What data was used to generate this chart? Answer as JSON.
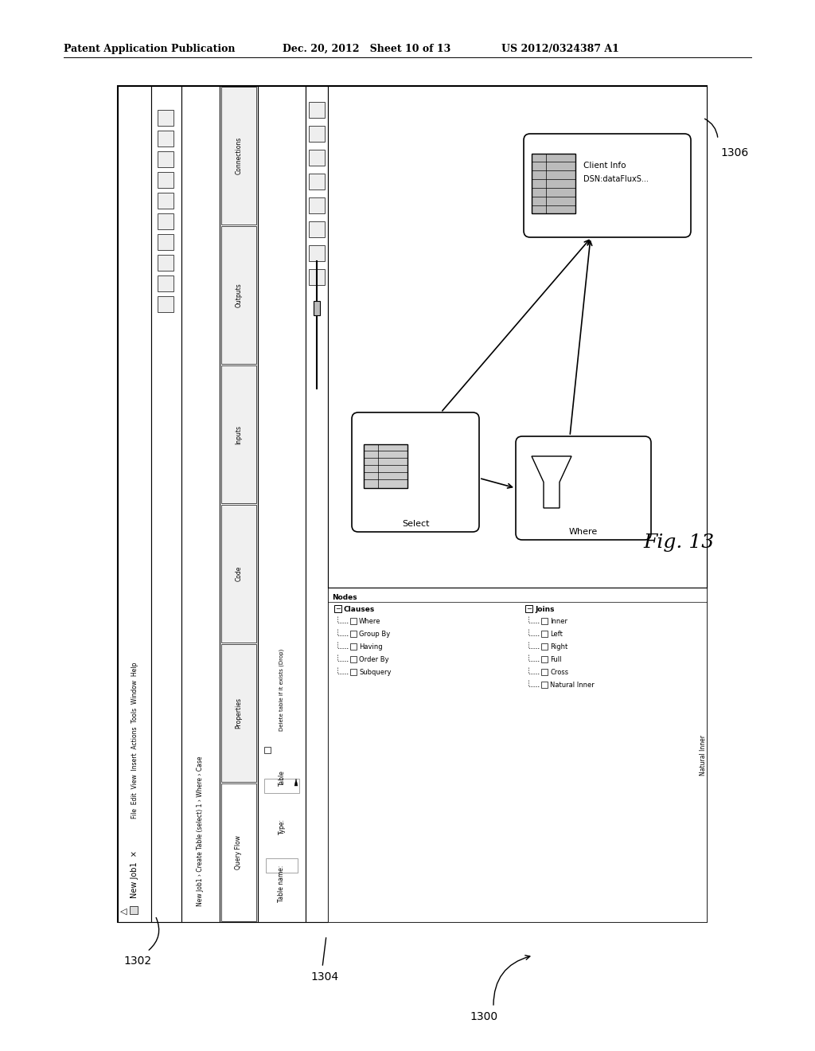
{
  "header_left": "Patent Application Publication",
  "header_mid": "Dec. 20, 2012   Sheet 10 of 13",
  "header_right": "US 2012/0324387 A1",
  "fig_label": "Fig. 13",
  "label_1300": "1300",
  "label_1302": "1302",
  "label_1304": "1304",
  "label_1306": "1306",
  "bg_color": "#ffffff",
  "clauses_items": [
    "Where",
    "Group By",
    "Having",
    "Order By",
    "Subquery"
  ],
  "joins_items": [
    "Inner",
    "Left",
    "Right",
    "Full",
    "Cross",
    "Natural Inner"
  ],
  "delete_table_text": "Delete table if it exists (Drop)",
  "client_info_line1": "Client Info",
  "client_info_line2": "DSN:dataFluxS...",
  "select_text": "Select",
  "where_text": "Where",
  "type_label": "Type:",
  "type_value": "Table",
  "table_name_label": "Table name:",
  "nodes_label": "Nodes",
  "clauses_label": "Clauses",
  "joins_label": "Joins"
}
